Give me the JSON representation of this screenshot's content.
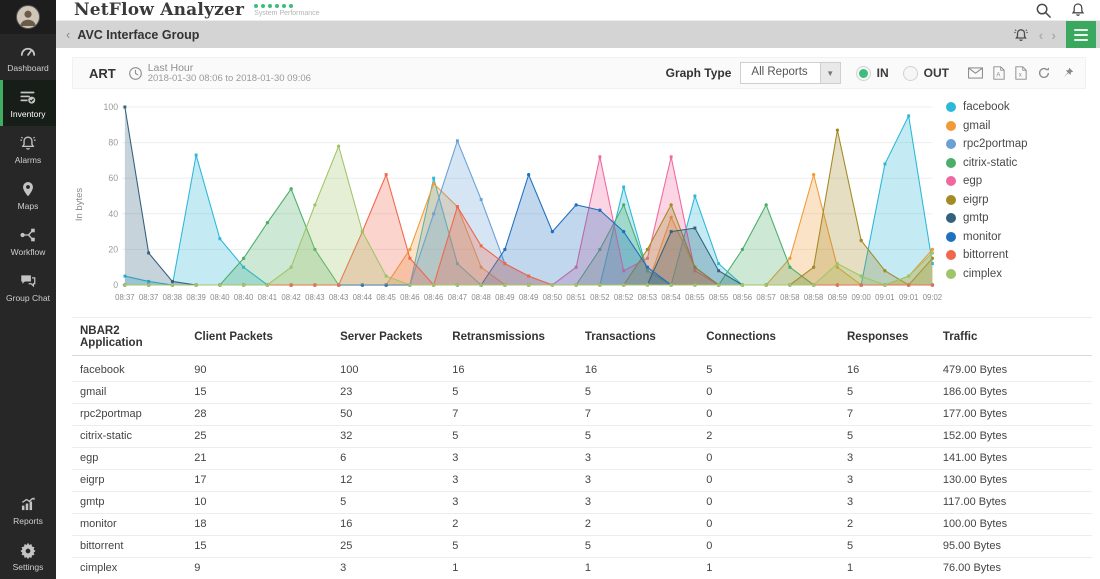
{
  "header": {
    "logo": "NetFlow Analyzer",
    "tagline": "System Performance",
    "dot_count": 6,
    "dot_color": "#3dbd7d",
    "icons": [
      "search",
      "notifications"
    ]
  },
  "sidebar": {
    "items": [
      {
        "label": "Dashboard",
        "icon": "dashboard-icon",
        "active": false
      },
      {
        "label": "Inventory",
        "icon": "inventory-icon",
        "active": true
      },
      {
        "label": "Alarms",
        "icon": "alarms-icon",
        "active": false
      },
      {
        "label": "Maps",
        "icon": "maps-icon",
        "active": false
      },
      {
        "label": "Workflow",
        "icon": "workflow-icon",
        "active": false
      },
      {
        "label": "Group Chat",
        "icon": "group-chat-icon",
        "active": false
      }
    ],
    "bottom_items": [
      {
        "label": "Reports",
        "icon": "reports-icon",
        "active": false
      },
      {
        "label": "Settings",
        "icon": "settings-icon",
        "active": false,
        "submenu_arrow": true
      }
    ],
    "accent_color": "#3fae5e"
  },
  "breadcrumb": {
    "back_glyph": "‹",
    "title": "AVC Interface Group",
    "right_icons": [
      "alarm",
      "chevron-left",
      "chevron-right",
      "menu"
    ],
    "menu_button_color": "#3aa95f"
  },
  "panel": {
    "title": "ART",
    "time_icon": "clock",
    "time_label": "Last Hour",
    "time_range": "2018-01-30 08:06 to 2018-01-30 09:06",
    "graph_type_label": "Graph Type",
    "graph_type_value": "All Reports",
    "radios": [
      {
        "label": "IN",
        "selected": true,
        "color": "#3dbd7d"
      },
      {
        "label": "OUT",
        "selected": false
      }
    ],
    "export_icons": [
      "mail",
      "pdf-export",
      "excel-export",
      "refresh",
      "pin"
    ]
  },
  "chart_data": {
    "type": "area",
    "title": "",
    "ylabel": "In bytes",
    "xlabel": "",
    "ylim": [
      0,
      100
    ],
    "yticks": [
      0,
      20,
      40,
      60,
      80,
      100
    ],
    "grid": true,
    "legend_position": "right",
    "x": [
      "08:37",
      "08:37",
      "08:38",
      "08:39",
      "08:40",
      "08:40",
      "08:41",
      "08:42",
      "08:43",
      "08:43",
      "08:44",
      "08:45",
      "08:46",
      "08:46",
      "08:47",
      "08:48",
      "08:49",
      "08:49",
      "08:50",
      "08:51",
      "08:52",
      "08:52",
      "08:53",
      "08:54",
      "08:55",
      "08:55",
      "08:56",
      "08:57",
      "08:58",
      "08:58",
      "08:59",
      "09:00",
      "09:01",
      "09:01",
      "09:02"
    ],
    "series": [
      {
        "name": "facebook",
        "color": "#2bb8d9",
        "values": [
          5,
          2,
          0,
          73,
          26,
          10,
          0,
          0,
          0,
          0,
          0,
          0,
          0,
          60,
          12,
          0,
          0,
          0,
          0,
          0,
          0,
          55,
          8,
          0,
          50,
          12,
          0,
          0,
          0,
          0,
          0,
          0,
          68,
          95,
          12
        ]
      },
      {
        "name": "gmail",
        "color": "#f09b36",
        "values": [
          0,
          0,
          0,
          0,
          0,
          0,
          0,
          0,
          0,
          0,
          0,
          0,
          20,
          57,
          44,
          10,
          0,
          0,
          0,
          0,
          0,
          0,
          0,
          38,
          10,
          0,
          0,
          0,
          15,
          62,
          10,
          0,
          0,
          5,
          20
        ]
      },
      {
        "name": "rpc2portmap",
        "color": "#6aa0d4",
        "values": [
          0,
          0,
          0,
          0,
          0,
          0,
          0,
          0,
          0,
          0,
          0,
          0,
          0,
          40,
          81,
          48,
          12,
          5,
          0,
          0,
          0,
          0,
          0,
          0,
          0,
          0,
          0,
          0,
          0,
          0,
          0,
          0,
          0,
          0,
          0
        ]
      },
      {
        "name": "citrix-static",
        "color": "#4cae68",
        "values": [
          0,
          0,
          0,
          0,
          0,
          15,
          35,
          54,
          20,
          0,
          0,
          0,
          0,
          0,
          0,
          0,
          0,
          0,
          0,
          0,
          20,
          45,
          8,
          0,
          0,
          0,
          20,
          45,
          10,
          0,
          0,
          0,
          0,
          0,
          0
        ]
      },
      {
        "name": "egp",
        "color": "#f0699e",
        "values": [
          0,
          0,
          0,
          0,
          0,
          0,
          0,
          0,
          0,
          0,
          0,
          0,
          0,
          0,
          0,
          0,
          0,
          0,
          0,
          10,
          72,
          8,
          15,
          72,
          8,
          0,
          0,
          0,
          0,
          0,
          0,
          0,
          0,
          0,
          0
        ]
      },
      {
        "name": "eigrp",
        "color": "#a38a26",
        "values": [
          0,
          0,
          0,
          0,
          0,
          0,
          0,
          0,
          0,
          0,
          0,
          0,
          0,
          0,
          0,
          0,
          0,
          0,
          0,
          0,
          0,
          0,
          20,
          45,
          10,
          0,
          0,
          0,
          0,
          10,
          87,
          25,
          8,
          0,
          15
        ]
      },
      {
        "name": "gmtp",
        "color": "#34617d",
        "values": [
          100,
          18,
          2,
          0,
          0,
          0,
          0,
          0,
          0,
          0,
          0,
          0,
          0,
          0,
          0,
          0,
          0,
          0,
          0,
          0,
          0,
          0,
          0,
          30,
          32,
          8,
          0,
          0,
          0,
          0,
          0,
          0,
          0,
          0,
          0
        ]
      },
      {
        "name": "monitor",
        "color": "#1e70c0",
        "values": [
          0,
          0,
          0,
          0,
          0,
          0,
          0,
          0,
          0,
          0,
          0,
          0,
          0,
          0,
          0,
          0,
          20,
          62,
          30,
          45,
          42,
          30,
          10,
          0,
          0,
          0,
          0,
          0,
          0,
          0,
          0,
          0,
          0,
          0,
          0
        ]
      },
      {
        "name": "bittorrent",
        "color": "#f2664c",
        "values": [
          0,
          0,
          0,
          0,
          0,
          0,
          0,
          0,
          0,
          0,
          30,
          62,
          15,
          0,
          44,
          22,
          12,
          5,
          0,
          0,
          0,
          0,
          0,
          0,
          0,
          0,
          0,
          0,
          0,
          0,
          0,
          0,
          0,
          0,
          0
        ]
      },
      {
        "name": "cimplex",
        "color": "#a0c468",
        "values": [
          0,
          0,
          0,
          0,
          0,
          0,
          0,
          10,
          45,
          78,
          30,
          5,
          0,
          0,
          0,
          0,
          0,
          0,
          0,
          0,
          0,
          0,
          0,
          0,
          0,
          0,
          0,
          0,
          0,
          0,
          12,
          5,
          0,
          5,
          18
        ]
      }
    ]
  },
  "table": {
    "columns": [
      "NBAR2 Application",
      "Client Packets",
      "Server Packets",
      "Retransmissions",
      "Transactions",
      "Connections",
      "Responses",
      "Traffic"
    ],
    "rows": [
      [
        "facebook",
        "90",
        "100",
        "16",
        "16",
        "5",
        "16",
        "479.00 Bytes"
      ],
      [
        "gmail",
        "15",
        "23",
        "5",
        "5",
        "0",
        "5",
        "186.00 Bytes"
      ],
      [
        "rpc2portmap",
        "28",
        "50",
        "7",
        "7",
        "0",
        "7",
        "177.00 Bytes"
      ],
      [
        "citrix-static",
        "25",
        "32",
        "5",
        "5",
        "2",
        "5",
        "152.00 Bytes"
      ],
      [
        "egp",
        "21",
        "6",
        "3",
        "3",
        "0",
        "3",
        "141.00 Bytes"
      ],
      [
        "eigrp",
        "17",
        "12",
        "3",
        "3",
        "0",
        "3",
        "130.00 Bytes"
      ],
      [
        "gmtp",
        "10",
        "5",
        "3",
        "3",
        "0",
        "3",
        "117.00 Bytes"
      ],
      [
        "monitor",
        "18",
        "16",
        "2",
        "2",
        "0",
        "2",
        "100.00 Bytes"
      ],
      [
        "bittorrent",
        "15",
        "25",
        "5",
        "5",
        "0",
        "5",
        "95.00 Bytes"
      ],
      [
        "cimplex",
        "9",
        "3",
        "1",
        "1",
        "1",
        "1",
        "76.00 Bytes"
      ]
    ]
  }
}
